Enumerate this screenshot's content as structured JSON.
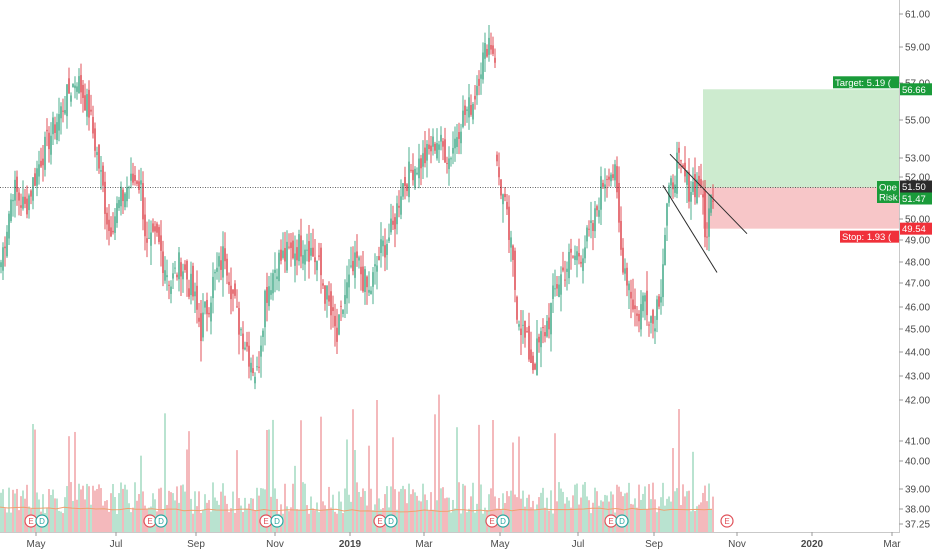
{
  "chart_data": {
    "type": "candlestick",
    "x_ticks": [
      "May",
      "Jul",
      "Sep",
      "Nov",
      "2019",
      "Mar",
      "May",
      "Jul",
      "Sep",
      "Nov",
      "2020",
      "Mar"
    ],
    "y_ticks": [
      "61.00",
      "59.00",
      "57.00",
      "55.00",
      "53.00",
      "52.00",
      "51.00",
      "50.00",
      "49.00",
      "48.00",
      "47.00",
      "46.00",
      "45.00",
      "44.00",
      "43.00",
      "42.00",
      "41.00",
      "40.00",
      "39.00",
      "38.00",
      "37.25"
    ],
    "ylim": [
      37.0,
      62.0
    ],
    "price_key": [
      {
        "d": 0,
        "v": 48.0
      },
      {
        "d": 6,
        "v": 51.5
      },
      {
        "d": 12,
        "v": 50.5
      },
      {
        "d": 20,
        "v": 53.0
      },
      {
        "d": 28,
        "v": 55.0
      },
      {
        "d": 34,
        "v": 56.5
      },
      {
        "d": 38,
        "v": 57.3
      },
      {
        "d": 44,
        "v": 55.5
      },
      {
        "d": 50,
        "v": 52.0
      },
      {
        "d": 54,
        "v": 49.5
      },
      {
        "d": 58,
        "v": 50.5
      },
      {
        "d": 63,
        "v": 51.5
      },
      {
        "d": 68,
        "v": 52.0
      },
      {
        "d": 70,
        "v": 51.5
      },
      {
        "d": 73,
        "v": 48.5
      },
      {
        "d": 78,
        "v": 49.0
      },
      {
        "d": 85,
        "v": 47.0
      },
      {
        "d": 90,
        "v": 48.0
      },
      {
        "d": 96,
        "v": 46.5
      },
      {
        "d": 100,
        "v": 45.0
      },
      {
        "d": 106,
        "v": 47.0
      },
      {
        "d": 112,
        "v": 48.5
      },
      {
        "d": 118,
        "v": 45.5
      },
      {
        "d": 124,
        "v": 44.0
      },
      {
        "d": 128,
        "v": 43.0
      },
      {
        "d": 132,
        "v": 46.5
      },
      {
        "d": 138,
        "v": 48.0
      },
      {
        "d": 146,
        "v": 48.5
      },
      {
        "d": 152,
        "v": 49.0
      },
      {
        "d": 158,
        "v": 48.0
      },
      {
        "d": 164,
        "v": 46.0
      },
      {
        "d": 168,
        "v": 44.5
      },
      {
        "d": 172,
        "v": 46.5
      },
      {
        "d": 178,
        "v": 48.0
      },
      {
        "d": 184,
        "v": 46.5
      },
      {
        "d": 190,
        "v": 48.5
      },
      {
        "d": 196,
        "v": 49.5
      },
      {
        "d": 200,
        "v": 51.5
      },
      {
        "d": 206,
        "v": 52.5
      },
      {
        "d": 212,
        "v": 53.0
      },
      {
        "d": 218,
        "v": 54.0
      },
      {
        "d": 224,
        "v": 53.0
      },
      {
        "d": 230,
        "v": 55.0
      },
      {
        "d": 236,
        "v": 56.0
      },
      {
        "d": 240,
        "v": 58.0
      },
      {
        "d": 244,
        "v": 59.5
      },
      {
        "d": 247,
        "v": 58.5
      },
      {
        "d": 248,
        "v": 52.5
      },
      {
        "d": 252,
        "v": 50.5
      },
      {
        "d": 255,
        "v": 48.5
      },
      {
        "d": 258,
        "v": 46.0
      },
      {
        "d": 262,
        "v": 44.5
      },
      {
        "d": 266,
        "v": 43.5
      },
      {
        "d": 270,
        "v": 44.5
      },
      {
        "d": 274,
        "v": 45.5
      },
      {
        "d": 278,
        "v": 47.0
      },
      {
        "d": 284,
        "v": 48.0
      },
      {
        "d": 290,
        "v": 48.5
      },
      {
        "d": 296,
        "v": 49.5
      },
      {
        "d": 300,
        "v": 51.5
      },
      {
        "d": 304,
        "v": 52.5
      },
      {
        "d": 307,
        "v": 52.0
      },
      {
        "d": 310,
        "v": 48.5
      },
      {
        "d": 314,
        "v": 47.0
      },
      {
        "d": 318,
        "v": 45.5
      },
      {
        "d": 322,
        "v": 46.5
      },
      {
        "d": 326,
        "v": 45.3
      },
      {
        "d": 330,
        "v": 47.0
      },
      {
        "d": 333,
        "v": 50.5
      },
      {
        "d": 338,
        "v": 52.8
      },
      {
        "d": 344,
        "v": 51.5
      },
      {
        "d": 350,
        "v": 51.8
      },
      {
        "d": 352,
        "v": 49.0
      },
      {
        "d": 356,
        "v": 51.5
      }
    ],
    "volume_ma": [
      38.1,
      38.0,
      37.95,
      37.95,
      37.9,
      37.95,
      38.0,
      37.95
    ],
    "prices": {
      "current": 51.5,
      "target": 56.66,
      "stop": 49.54
    },
    "labels": {
      "target": "Target: 5.19 (",
      "target_price": "56.66",
      "open_short": "Ope",
      "risk_short": "Risk",
      "current_price": "51.50",
      "open_value": "51.47",
      "stop": "Stop: 1.93 (",
      "stop_price": "49.54"
    },
    "earnings_markers": [
      {
        "letters": [
          "E",
          "D"
        ]
      },
      {
        "letters": [
          "E",
          "D"
        ]
      },
      {
        "letters": [
          "E",
          "D"
        ]
      },
      {
        "letters": [
          "E",
          "D"
        ]
      },
      {
        "letters": [
          "E",
          "D"
        ]
      },
      {
        "letters": [
          "E",
          "D"
        ]
      },
      {
        "letters": [
          "E"
        ]
      }
    ],
    "colors": {
      "up": "#4caf8f",
      "down": "#e0525a",
      "vol_up": "#a8dcc4",
      "vol_down": "#f2a8ab",
      "profit_zone": "#cdebcf",
      "loss_zone": "#f7c6c8",
      "target_tag": "#1a9b3a",
      "stop_tag": "#f0303a",
      "current_tag": "#2b2b2b",
      "ma_line": "#f0a070"
    }
  }
}
